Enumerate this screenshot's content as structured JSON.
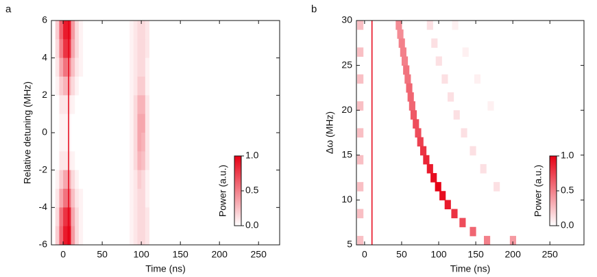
{
  "chart_data": [
    {
      "type": "heatmap",
      "panel": "a",
      "x_label": "Time (ns)",
      "y_label": "Relative detuning (MHz)",
      "xlim": [
        -15,
        277
      ],
      "ylim": [
        -6,
        6
      ],
      "xticks": [
        0,
        50,
        100,
        150,
        200,
        250
      ],
      "yticks": [
        -6,
        -4,
        -2,
        0,
        2,
        4,
        6
      ],
      "colormap": [
        "#ffffff",
        "#e60014"
      ],
      "vline_x": 7,
      "colorbar": {
        "title": "Power (a.u.)",
        "lim": [
          0,
          1
        ],
        "ticks": [
          {
            "value": 0,
            "label": "0.0"
          },
          {
            "value": 0.5,
            "label": "0.5"
          },
          {
            "value": 1,
            "label": "1.0"
          }
        ]
      },
      "x": [
        -7.5,
        -2.5,
        2.5,
        7.5,
        12.5,
        17.5,
        22.5,
        87.5,
        92.5,
        97.5,
        102.5,
        107.5
      ],
      "y": [
        5.5,
        4.5,
        3.5,
        2.5,
        1.5,
        0.5,
        -0.5,
        -1.5,
        -2.5,
        -3.5,
        -4.5,
        -5.5
      ],
      "z": [
        [
          0.2,
          0.6,
          0.9,
          0.9,
          0.4,
          0.15,
          0.05,
          0.05,
          0.1,
          0.15,
          0.15,
          0.1
        ],
        [
          0.15,
          0.5,
          0.8,
          0.8,
          0.35,
          0.15,
          0.05,
          0.05,
          0.1,
          0.15,
          0.15,
          0.1
        ],
        [
          0.1,
          0.35,
          0.55,
          0.5,
          0.25,
          0.1,
          0.05,
          0.05,
          0.1,
          0.15,
          0.15,
          0.05
        ],
        [
          0.05,
          0.2,
          0.3,
          0.3,
          0.15,
          0.05,
          0,
          0.05,
          0.1,
          0.2,
          0.2,
          0.05
        ],
        [
          0,
          0.1,
          0.1,
          0.1,
          0.05,
          0,
          0,
          0.05,
          0.15,
          0.3,
          0.3,
          0.1
        ],
        [
          0,
          0.05,
          0.05,
          0.05,
          0,
          0,
          0,
          0.05,
          0.15,
          0.35,
          0.35,
          0.1
        ],
        [
          0,
          0.05,
          0.05,
          0.05,
          0,
          0,
          0,
          0.05,
          0.15,
          0.35,
          0.3,
          0.1
        ],
        [
          0,
          0.1,
          0.1,
          0.1,
          0.05,
          0,
          0,
          0.05,
          0.15,
          0.3,
          0.25,
          0.1
        ],
        [
          0.05,
          0.2,
          0.35,
          0.35,
          0.15,
          0.05,
          0,
          0.05,
          0.1,
          0.2,
          0.15,
          0.05
        ],
        [
          0.1,
          0.35,
          0.55,
          0.55,
          0.25,
          0.1,
          0.05,
          0.05,
          0.1,
          0.15,
          0.15,
          0.05
        ],
        [
          0.15,
          0.55,
          0.8,
          0.85,
          0.35,
          0.15,
          0.05,
          0.05,
          0.1,
          0.15,
          0.15,
          0.1
        ],
        [
          0.2,
          0.6,
          0.9,
          0.95,
          0.4,
          0.15,
          0.05,
          0.05,
          0.1,
          0.15,
          0.15,
          0.1
        ]
      ]
    },
    {
      "type": "heatmap",
      "panel": "b",
      "x_label": "Time (ns)",
      "y_label": "Δω (MHz)",
      "xlim": [
        -11,
        296
      ],
      "ylim": [
        5,
        30
      ],
      "xticks": [
        0,
        50,
        100,
        150,
        200,
        250
      ],
      "yticks": [
        5,
        10,
        15,
        20,
        25,
        30
      ],
      "colormap": [
        "#ffffff",
        "#e60014"
      ],
      "vline_x": 10,
      "colorbar": {
        "title": "Power (a.u.)",
        "lim": [
          0,
          1
        ],
        "ticks": [
          {
            "value": 0,
            "label": "0.0"
          },
          {
            "value": 0.5,
            "label": "0.5"
          },
          {
            "value": 1,
            "label": "1.0"
          }
        ]
      },
      "x": [
        46,
        48,
        50,
        52,
        54,
        56,
        58,
        60,
        62,
        64,
        66,
        69,
        72,
        75,
        79,
        83,
        88,
        93,
        99,
        105,
        112,
        121,
        132,
        146,
        165,
        200,
        88,
        94,
        100,
        108,
        116,
        124,
        134,
        146,
        160,
        178,
        122,
        136,
        152,
        170,
        -6,
        -6,
        -6,
        -6,
        -6,
        -6,
        -6,
        -6,
        -6
      ],
      "y": [
        29.5,
        28.5,
        27.5,
        26.5,
        25.5,
        24.5,
        23.5,
        22.5,
        21.5,
        20.5,
        19.5,
        18.5,
        17.5,
        16.5,
        15.5,
        14.5,
        13.5,
        12.5,
        11.5,
        10.5,
        9.5,
        8.5,
        7.5,
        6.5,
        5.5,
        5.5,
        29.5,
        27.5,
        25.5,
        23.5,
        21.5,
        19.5,
        17.5,
        15.5,
        13.5,
        11.5,
        29.5,
        26.5,
        23.5,
        20.5,
        29.5,
        26.5,
        23.5,
        20.5,
        17.5,
        14.5,
        11.5,
        8.5,
        5.5
      ],
      "z": [
        0.45,
        0.45,
        0.5,
        0.5,
        0.5,
        0.55,
        0.55,
        0.6,
        0.6,
        0.6,
        0.65,
        0.7,
        0.7,
        0.75,
        0.8,
        0.85,
        0.9,
        0.95,
        1.0,
        0.95,
        0.9,
        0.8,
        0.7,
        0.6,
        0.5,
        0.4,
        0.12,
        0.12,
        0.12,
        0.12,
        0.12,
        0.12,
        0.12,
        0.12,
        0.12,
        0.12,
        0.06,
        0.06,
        0.06,
        0.06,
        0.25,
        0.25,
        0.25,
        0.25,
        0.25,
        0.25,
        0.25,
        0.25,
        0.25
      ]
    }
  ]
}
